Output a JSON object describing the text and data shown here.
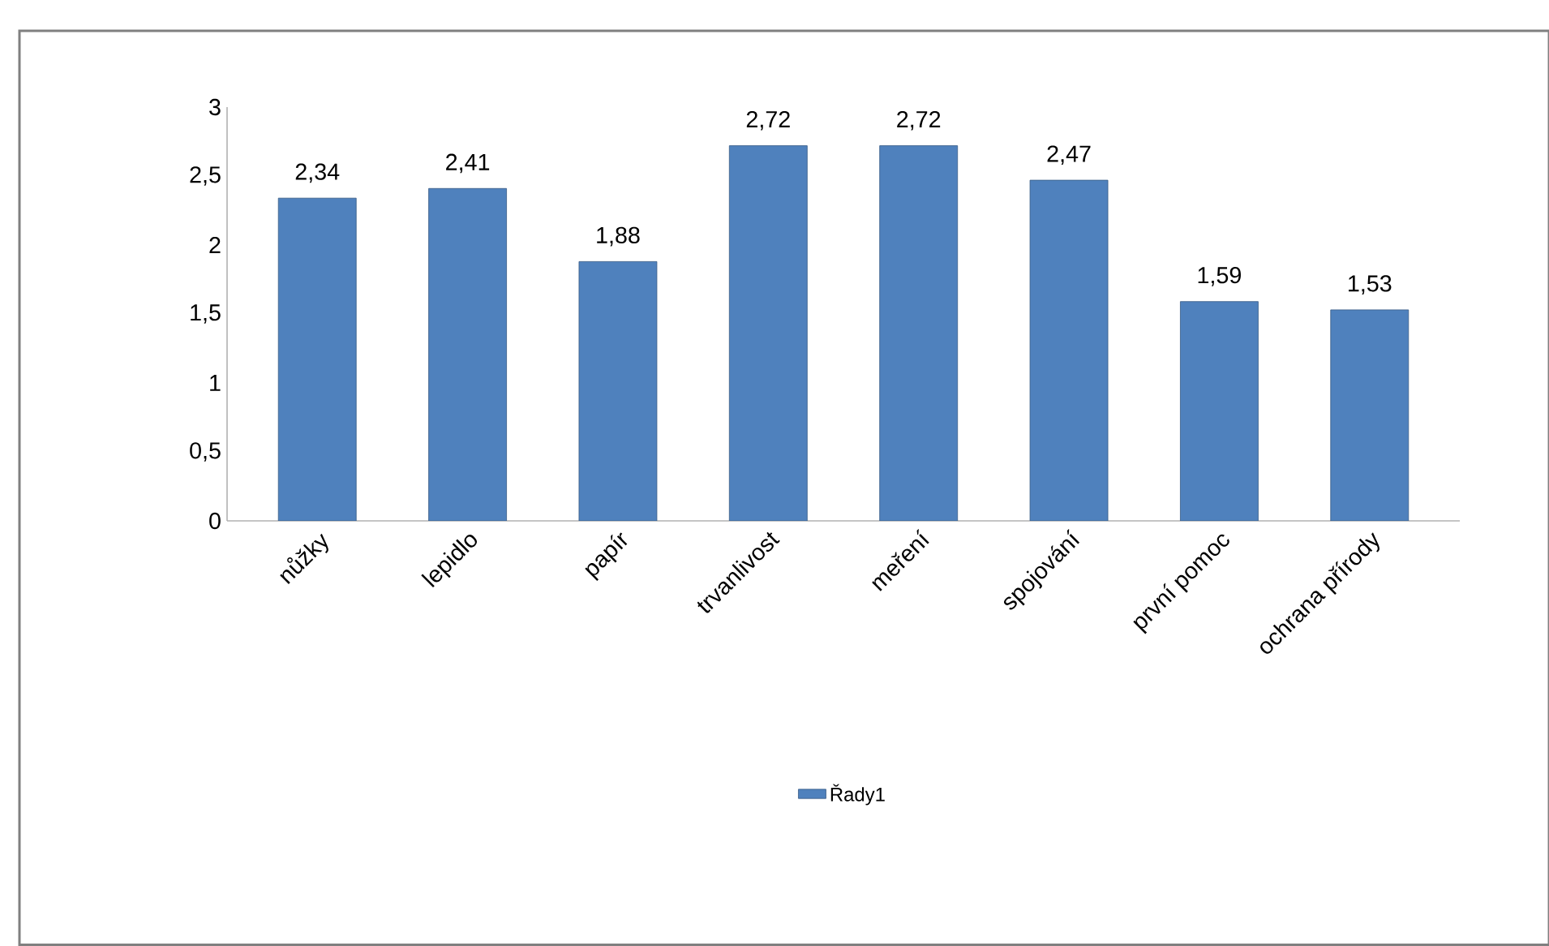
{
  "chart_data": {
    "type": "bar",
    "categories": [
      "nůžky",
      "lepidlo",
      "papír",
      "trvanlivost",
      "meření",
      "spojování",
      "první pomoc",
      "ochrana přírody"
    ],
    "series": [
      {
        "name": "Řady1",
        "color": "#4f81bd",
        "values": [
          2.34,
          2.41,
          1.88,
          2.72,
          2.72,
          2.47,
          1.59,
          1.53
        ],
        "value_labels": [
          "2,34",
          "2,41",
          "1,88",
          "2,72",
          "2,72",
          "2,47",
          "1,59",
          "1,53"
        ]
      }
    ],
    "ylim": [
      0,
      3
    ],
    "yticks": [
      0,
      {
        "value": 0.5,
        "label": "0,5"
      },
      1,
      {
        "value": 1.5,
        "label": "1,5"
      },
      2,
      {
        "value": 2.5,
        "label": "2,5"
      },
      3
    ],
    "grid": false,
    "legend": "bottom"
  }
}
